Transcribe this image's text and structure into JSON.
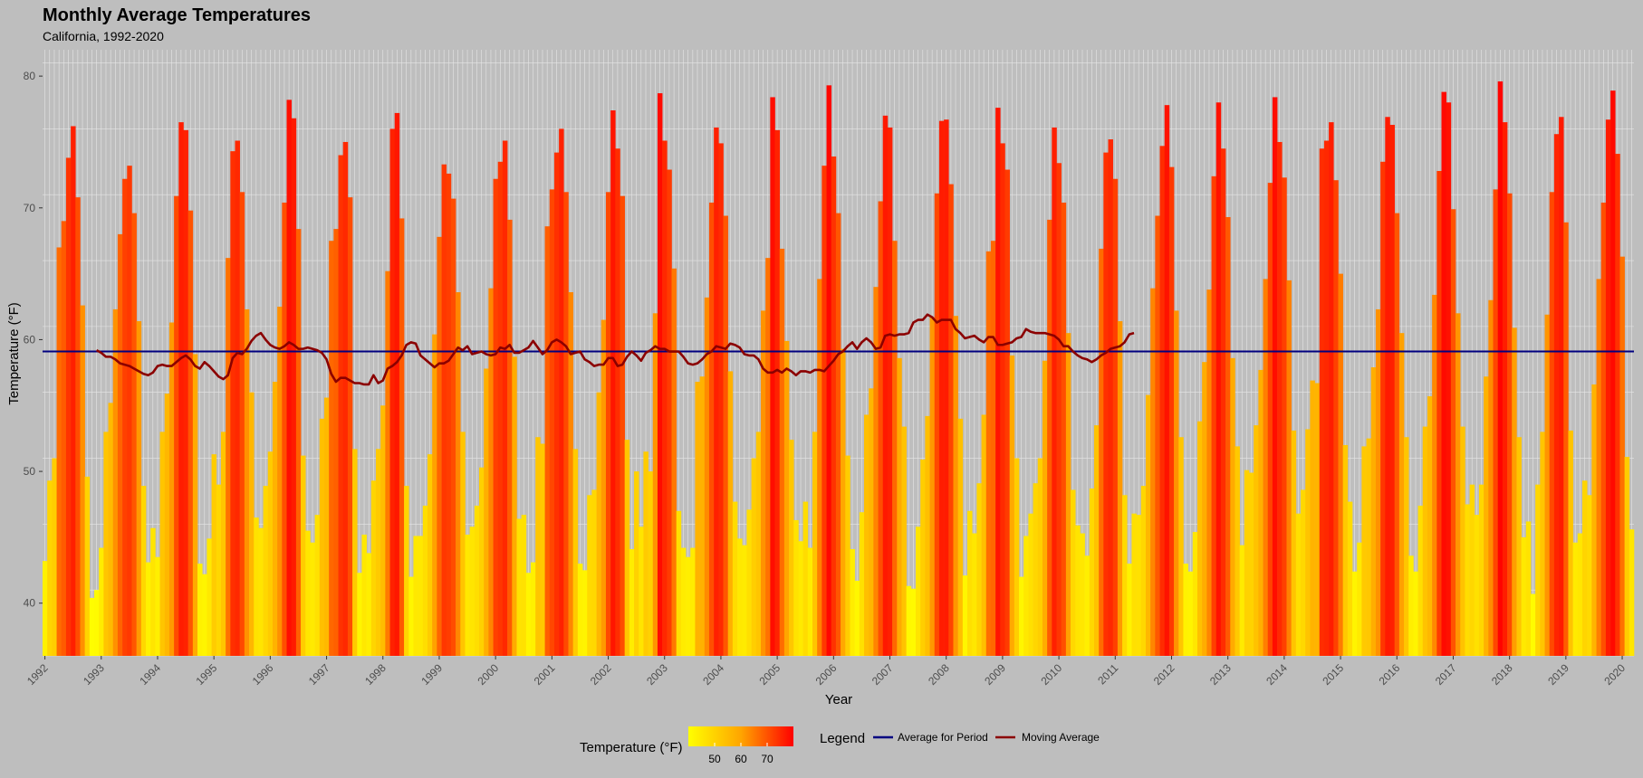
{
  "chart_data": {
    "type": "bar",
    "title": "Monthly Average Temperatures",
    "subtitle": "California, 1992-2020",
    "xlabel": "Year",
    "ylabel": "Temperature (°F)",
    "ylim": [
      36,
      82
    ],
    "yticks": [
      40,
      50,
      60,
      70,
      80
    ],
    "x_tick_labels": [
      "1992",
      "1993",
      "1994",
      "1995",
      "1996",
      "1997",
      "1998",
      "1999",
      "2000",
      "2001",
      "2002",
      "2003",
      "2004",
      "2005",
      "2006",
      "2007",
      "2008",
      "2009",
      "2010",
      "2011",
      "2012",
      "2013",
      "2014",
      "2015",
      "2016",
      "2017",
      "2018",
      "2019",
      "2020"
    ],
    "grid": true,
    "months_per_year": 12,
    "series_monthly": [
      {
        "year": "1992",
        "values": [
          43.2,
          49.3,
          51.0,
          67.0,
          69.0,
          73.8,
          76.2,
          70.8,
          62.6,
          49.6,
          40.4,
          41.0
        ]
      },
      {
        "year": "1993",
        "values": [
          44.2,
          53.0,
          55.2,
          62.3,
          68.0,
          72.2,
          73.2,
          69.6,
          61.4,
          48.9,
          43.1,
          45.7
        ]
      },
      {
        "year": "1994",
        "values": [
          43.5,
          53.0,
          55.9,
          61.3,
          70.9,
          76.5,
          75.9,
          69.8,
          58.9,
          43.0,
          42.2,
          44.9
        ]
      },
      {
        "year": "1995",
        "values": [
          51.3,
          49.0,
          53.0,
          66.2,
          74.3,
          75.1,
          71.2,
          62.3,
          56.0,
          46.5,
          45.7,
          48.9
        ]
      },
      {
        "year": "1996",
        "values": [
          51.5,
          56.8,
          62.5,
          70.4,
          78.2,
          76.8,
          68.4,
          51.2,
          45.5,
          44.6,
          46.7,
          54.0
        ]
      },
      {
        "year": "1997",
        "values": [
          55.6,
          67.5,
          68.4,
          74.0,
          75.0,
          70.8,
          51.7,
          42.3,
          45.2,
          43.8,
          49.3,
          51.7
        ]
      },
      {
        "year": "1998",
        "values": [
          55.0,
          65.2,
          76.0,
          77.2,
          69.2,
          48.9,
          42.0,
          45.1,
          45.1,
          47.4,
          51.3,
          60.4
        ]
      },
      {
        "year": "1999",
        "values": [
          67.8,
          73.3,
          72.6,
          70.7,
          63.6,
          53.0,
          45.2,
          45.8,
          47.4,
          50.3,
          57.8,
          63.9
        ]
      },
      {
        "year": "2000",
        "values": [
          72.2,
          73.5,
          75.1,
          69.1,
          58.7,
          46.4,
          46.7,
          42.3,
          43.1,
          52.6,
          52.1,
          68.6
        ]
      },
      {
        "year": "2001",
        "values": [
          71.4,
          74.2,
          76.0,
          71.2,
          63.6,
          51.7,
          43.0,
          42.5,
          48.2,
          48.6,
          56.0,
          61.5
        ]
      },
      {
        "year": "2002",
        "values": [
          71.2,
          77.4,
          74.5,
          70.9,
          52.4,
          44.1,
          50.0,
          45.8,
          51.5,
          50.0,
          62.0,
          78.7
        ]
      },
      {
        "year": "2003",
        "values": [
          75.1,
          72.9,
          65.4,
          47.0,
          44.2,
          43.5,
          44.2,
          56.8,
          57.2,
          63.2,
          70.4,
          76.1
        ]
      },
      {
        "year": "2004",
        "values": [
          74.9,
          69.4,
          57.6,
          47.7,
          44.9,
          44.4,
          47.1,
          51.0,
          53.0,
          62.2,
          66.2,
          78.4
        ]
      },
      {
        "year": "2005",
        "values": [
          75.9,
          66.9,
          59.9,
          52.4,
          46.3,
          44.7,
          47.7,
          44.2,
          53.0,
          64.6,
          73.2,
          79.3
        ]
      },
      {
        "year": "2006",
        "values": [
          73.9,
          69.6,
          59.3,
          51.2,
          44.1,
          41.7,
          46.9,
          54.3,
          56.3,
          64.0,
          70.5,
          77.0
        ]
      },
      {
        "year": "2007",
        "values": [
          76.1,
          67.5,
          58.6,
          53.4,
          41.3,
          41.1,
          45.8,
          50.9,
          54.2,
          61.7,
          71.1,
          76.6
        ]
      },
      {
        "year": "2008",
        "values": [
          76.7,
          71.8,
          61.8,
          54.0,
          42.1,
          47.0,
          45.3,
          49.1,
          54.3,
          66.7,
          67.5,
          77.6
        ]
      },
      {
        "year": "2009",
        "values": [
          74.9,
          72.9,
          58.8,
          51.0,
          42.0,
          45.1,
          46.8,
          49.1,
          51.0,
          58.4,
          69.1,
          76.1
        ]
      },
      {
        "year": "2010",
        "values": [
          73.4,
          70.4,
          60.5,
          48.6,
          45.9,
          45.3,
          43.6,
          48.7,
          53.5,
          66.9,
          74.2,
          75.2
        ]
      },
      {
        "year": "2011",
        "values": [
          72.2,
          61.4,
          48.2,
          43.0,
          46.8,
          46.7,
          48.9,
          55.8,
          63.9,
          69.4,
          74.7,
          77.8
        ]
      },
      {
        "year": "2012",
        "values": [
          73.1,
          62.2,
          52.6,
          43.0,
          42.4,
          45.4,
          53.8,
          58.3,
          63.8,
          72.4,
          78.0,
          74.5
        ]
      },
      {
        "year": "2013",
        "values": [
          69.3,
          58.6,
          51.9,
          44.4,
          50.1,
          49.9,
          53.5,
          57.7,
          64.6,
          71.9,
          78.4,
          75.0
        ]
      },
      {
        "year": "2014",
        "values": [
          72.3,
          64.5,
          53.1,
          46.8,
          48.6,
          53.2,
          56.9,
          56.7,
          74.5,
          75.1,
          76.5,
          72.1
        ]
      },
      {
        "year": "2015",
        "values": [
          65.0,
          52.0,
          47.7,
          42.4,
          44.6,
          51.9,
          52.5,
          57.9,
          62.3,
          73.5,
          76.9,
          76.3
        ]
      },
      {
        "year": "2016",
        "values": [
          69.6,
          60.5,
          52.6,
          43.6,
          42.4,
          47.4,
          53.4,
          55.7,
          63.4,
          72.8,
          78.8,
          78.0
        ]
      },
      {
        "year": "2017",
        "values": [
          69.9,
          62.0,
          53.4,
          47.5,
          49.0,
          46.7,
          49.0,
          57.2,
          63.0,
          71.4,
          79.6,
          76.5
        ]
      },
      {
        "year": "2018",
        "values": [
          71.1,
          60.9,
          52.6,
          45.0,
          46.2,
          40.7,
          49.0,
          53.0,
          61.9,
          71.2,
          75.6,
          76.9
        ]
      },
      {
        "year": "2019",
        "values": [
          68.9,
          53.1,
          44.6,
          45.3,
          49.3,
          48.2,
          56.6,
          64.6,
          70.4,
          76.7,
          78.9,
          74.1
        ]
      },
      {
        "year": "2020",
        "values": [
          66.3,
          51.1,
          45.6
        ]
      }
    ],
    "average_for_period": 59.1,
    "moving_average": [
      59.2,
      59.0,
      58.7,
      58.7,
      58.5,
      58.2,
      58.1,
      58.0,
      57.8,
      57.6,
      57.4,
      57.3,
      57.5,
      58.0,
      58.1,
      58.0,
      58.0,
      58.3,
      58.6,
      58.8,
      58.5,
      58.0,
      57.8,
      58.3,
      58.0,
      57.6,
      57.2,
      57.0,
      57.3,
      58.6,
      59.0,
      58.9,
      59.3,
      59.9,
      60.3,
      60.5,
      60.0,
      59.6,
      59.4,
      59.3,
      59.5,
      59.8,
      59.6,
      59.3,
      59.3,
      59.4,
      59.3,
      59.2,
      59.0,
      58.5,
      57.4,
      56.8,
      57.1,
      57.1,
      56.9,
      56.7,
      56.7,
      56.6,
      56.6,
      57.3,
      56.7,
      56.9,
      57.8,
      58.0,
      58.3,
      58.8,
      59.6,
      59.8,
      59.7,
      58.8,
      58.5,
      58.2,
      57.9,
      58.2,
      58.2,
      58.4,
      58.9,
      59.4,
      59.2,
      59.5,
      58.9,
      59.0,
      59.1,
      58.9,
      58.8,
      58.9,
      59.4,
      59.3,
      59.6,
      59.0,
      59.0,
      59.2,
      59.4,
      59.9,
      59.4,
      58.9,
      59.2,
      59.8,
      60.0,
      59.8,
      59.5,
      58.9,
      59.0,
      59.1,
      58.5,
      58.3,
      58.0,
      58.1,
      58.1,
      58.6,
      58.6,
      58.0,
      58.1,
      58.7,
      59.1,
      58.8,
      58.4,
      59.0,
      59.2,
      59.5,
      59.3,
      59.3,
      59.1,
      59.1,
      59.1,
      58.7,
      58.2,
      58.1,
      58.2,
      58.5,
      58.9,
      59.1,
      59.5,
      59.4,
      59.3,
      59.7,
      59.6,
      59.4,
      58.9,
      58.8,
      58.8,
      58.5,
      57.8,
      57.5,
      57.5,
      57.7,
      57.5,
      57.8,
      57.6,
      57.3,
      57.6,
      57.6,
      57.5,
      57.7,
      57.7,
      57.6,
      58.0,
      58.4,
      58.9,
      59.1,
      59.5,
      59.8,
      59.3,
      59.8,
      60.1,
      59.8,
      59.3,
      59.4,
      60.3,
      60.4,
      60.3,
      60.4,
      60.4,
      60.5,
      61.3,
      61.5,
      61.5,
      61.9,
      61.7,
      61.3,
      61.5,
      61.5,
      61.5,
      60.8,
      60.5,
      60.1,
      60.2,
      60.3,
      60.0,
      59.8,
      60.2,
      60.2,
      59.6,
      59.6,
      59.7,
      59.8,
      60.1,
      60.2,
      60.8,
      60.6,
      60.5,
      60.5,
      60.5,
      60.4,
      60.3,
      60.0,
      59.5,
      59.5,
      59.1,
      58.8,
      58.6,
      58.5,
      58.3,
      58.5,
      58.8,
      59.0,
      59.3,
      59.4,
      59.5,
      59.8,
      60.4,
      60.5
    ]
  },
  "legend": {
    "color_title": "Temperature (°F)",
    "color_ticks": [
      "50",
      "60",
      "70"
    ],
    "color_tick_values": [
      50,
      60,
      70
    ],
    "color_range": [
      40,
      80
    ],
    "gradient_colors": [
      "#ffff00",
      "#ffa500",
      "#ff0000"
    ],
    "lines_title": "Legend",
    "items": [
      {
        "label": "Average for Period",
        "color": "#000080"
      },
      {
        "label": "Moving Average",
        "color": "#8b0000"
      }
    ]
  },
  "colors": {
    "background": "#bebebe",
    "grid": "#e6e6e6",
    "average_line": "#000080",
    "moving_average_line": "#8b0000"
  }
}
